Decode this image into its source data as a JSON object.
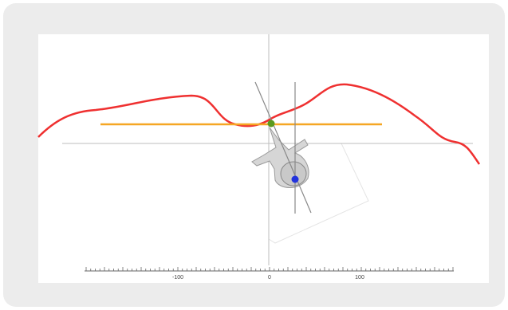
{
  "ruler": {
    "labels": [
      "-100",
      "0",
      "100"
    ]
  }
}
